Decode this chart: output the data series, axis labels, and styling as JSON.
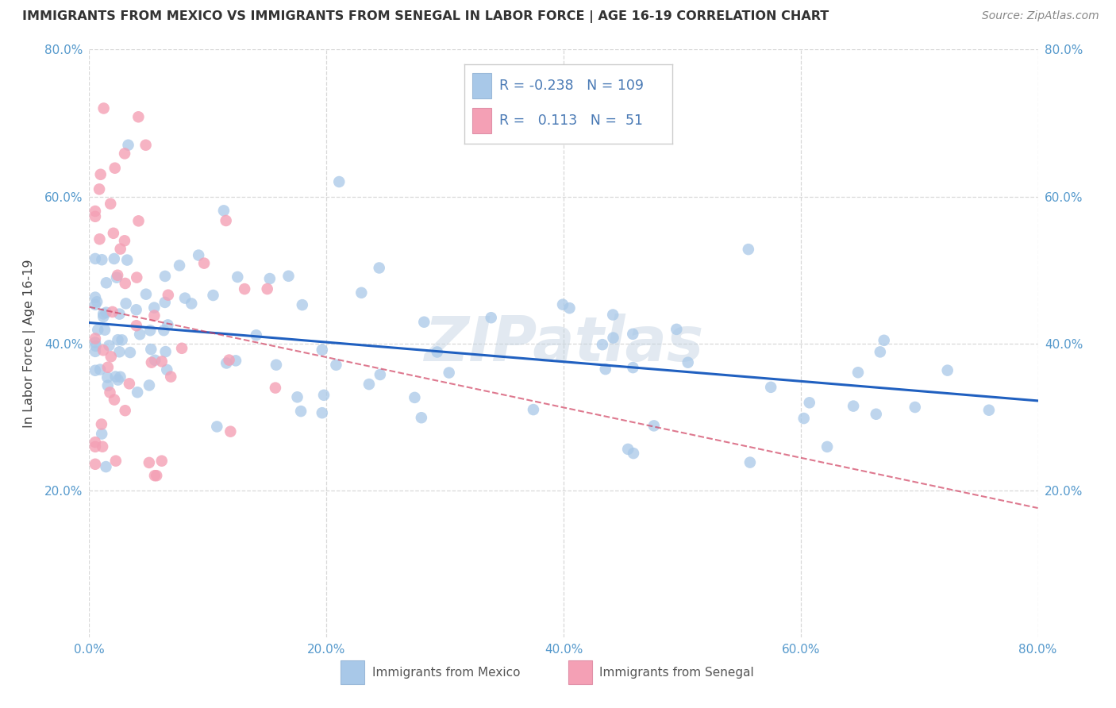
{
  "title": "IMMIGRANTS FROM MEXICO VS IMMIGRANTS FROM SENEGAL IN LABOR FORCE | AGE 16-19 CORRELATION CHART",
  "source": "Source: ZipAtlas.com",
  "ylabel": "In Labor Force | Age 16-19",
  "xlim": [
    0.0,
    0.8
  ],
  "ylim": [
    0.0,
    0.8
  ],
  "xtick_vals": [
    0.0,
    0.2,
    0.4,
    0.6,
    0.8
  ],
  "ytick_vals": [
    0.2,
    0.4,
    0.6,
    0.8
  ],
  "mexico_color": "#a8c8e8",
  "senegal_color": "#f4a0b5",
  "mexico_line_color": "#2060c0",
  "senegal_line_color": "#d04060",
  "R_mexico": -0.238,
  "N_mexico": 109,
  "R_senegal": 0.113,
  "N_senegal": 51,
  "watermark": "ZIPatlas",
  "background_color": "#ffffff",
  "grid_color": "#d8d8d8",
  "text_color": "#4a7ab5",
  "tick_color": "#5599cc"
}
